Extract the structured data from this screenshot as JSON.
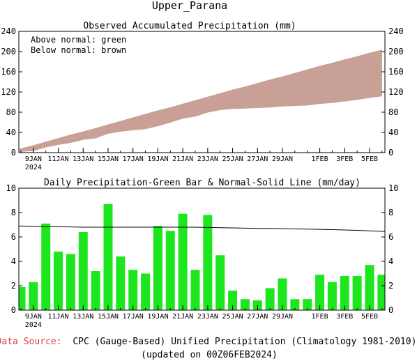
{
  "page_title": "Upper_Parana",
  "colors": {
    "fill_between": "#c8a096",
    "bar": "#1ee61e",
    "axis": "#000000",
    "source_label": "#e03c3c"
  },
  "footer": {
    "source_label": "Data Source:",
    "source_text": "CPC (Gauge-Based) Unified Precipitation (Climatology 1981-2010)",
    "updated": "(updated on 00Z06FEB2024)"
  },
  "x_ticks": [
    "9JAN",
    "11JAN",
    "13JAN",
    "15JAN",
    "17JAN",
    "19JAN",
    "21JAN",
    "23JAN",
    "25JAN",
    "27JAN",
    "29JAN",
    "1FEB",
    "3FEB",
    "5FEB"
  ],
  "x_year": "2024",
  "chart_data": [
    {
      "type": "area",
      "title": "Observed Accumulated Precipitation (mm)",
      "annotations": [
        "Above normal: green",
        "Below normal: brown"
      ],
      "x": [
        "8JAN",
        "9JAN",
        "10JAN",
        "11JAN",
        "12JAN",
        "13JAN",
        "14JAN",
        "15JAN",
        "16JAN",
        "17JAN",
        "18JAN",
        "19JAN",
        "20JAN",
        "21JAN",
        "22JAN",
        "23JAN",
        "24JAN",
        "25JAN",
        "26JAN",
        "27JAN",
        "28JAN",
        "29JAN",
        "30JAN",
        "31JAN",
        "1FEB",
        "2FEB",
        "3FEB",
        "4FEB",
        "5FEB",
        "6FEB"
      ],
      "series": [
        {
          "name": "Observed",
          "values": [
            2,
            4,
            11,
            16,
            20,
            26,
            29,
            38,
            42,
            45,
            47,
            53,
            60,
            68,
            72,
            80,
            85,
            87,
            88,
            89,
            90,
            92,
            93,
            94,
            97,
            99,
            102,
            105,
            109,
            112
          ]
        },
        {
          "name": "Normal",
          "values": [
            7,
            14,
            21,
            28,
            35,
            41,
            48,
            55,
            62,
            69,
            76,
            83,
            89,
            96,
            103,
            110,
            117,
            124,
            130,
            137,
            144,
            150,
            157,
            164,
            171,
            177,
            184,
            190,
            197,
            203
          ]
        }
      ],
      "ylim": [
        0,
        240
      ],
      "yticks": [
        0,
        40,
        80,
        120,
        160,
        200,
        240
      ]
    },
    {
      "type": "bar",
      "title": "Daily Precipitation-Green Bar & Normal-Solid Line (mm/day)",
      "x": [
        "8JAN",
        "9JAN",
        "10JAN",
        "11JAN",
        "12JAN",
        "13JAN",
        "14JAN",
        "15JAN",
        "16JAN",
        "17JAN",
        "18JAN",
        "19JAN",
        "20JAN",
        "21JAN",
        "22JAN",
        "23JAN",
        "24JAN",
        "25JAN",
        "26JAN",
        "27JAN",
        "28JAN",
        "29JAN",
        "30JAN",
        "31JAN",
        "1FEB",
        "2FEB",
        "3FEB",
        "4FEB",
        "5FEB",
        "6FEB"
      ],
      "series": [
        {
          "name": "Daily",
          "values": [
            1.9,
            2.3,
            7.1,
            4.8,
            4.6,
            6.4,
            3.2,
            8.7,
            4.4,
            3.3,
            3.0,
            6.9,
            6.5,
            7.9,
            3.3,
            7.8,
            4.5,
            1.6,
            0.9,
            0.8,
            1.8,
            2.6,
            0.9,
            0.9,
            2.9,
            2.3,
            2.8,
            2.8,
            3.7,
            2.9
          ]
        },
        {
          "name": "Normal",
          "values": [
            6.9,
            6.88,
            6.86,
            6.84,
            6.82,
            6.8,
            6.8,
            6.8,
            6.8,
            6.8,
            6.8,
            6.8,
            6.8,
            6.8,
            6.8,
            6.78,
            6.76,
            6.74,
            6.72,
            6.7,
            6.7,
            6.68,
            6.66,
            6.64,
            6.62,
            6.6,
            6.57,
            6.54,
            6.5,
            6.45
          ]
        }
      ],
      "ylim": [
        0,
        10
      ],
      "yticks": [
        0,
        2,
        4,
        6,
        8,
        10
      ]
    }
  ]
}
